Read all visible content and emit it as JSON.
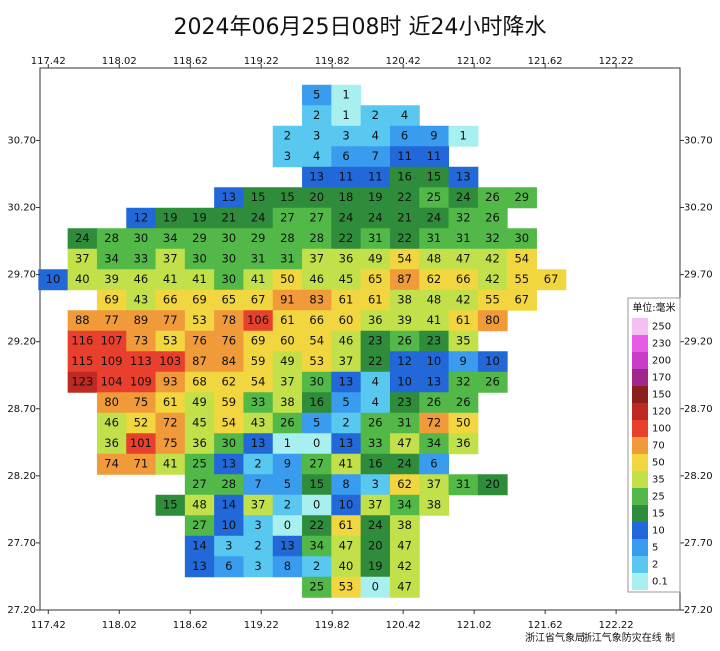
{
  "title": "2024年06月25日08时  近24小时降水",
  "map": {
    "lonlim": [
      117.35,
      122.76
    ],
    "latlim": [
      27.2,
      31.24
    ],
    "lon_ticks": [
      117.42,
      118.02,
      118.62,
      119.22,
      119.82,
      120.42,
      121.02,
      121.62,
      122.22
    ],
    "lat_ticks": [
      {
        "value": 30.7,
        "label": "30.70"
      },
      {
        "value": 30.2,
        "label": "30.20"
      },
      {
        "value": 29.7,
        "label": "29.70"
      },
      {
        "value": 29.2,
        "label": "29.20"
      },
      {
        "value": 28.7,
        "label": "28.70"
      },
      {
        "value": 28.2,
        "label": "28.20"
      },
      {
        "value": 27.7,
        "label": "27.70"
      },
      {
        "value": 27.2,
        "label": "27.20"
      }
    ],
    "stations": [
      [
        null,
        null,
        null,
        null,
        null,
        null,
        null,
        null,
        null,
        5,
        1,
        null,
        null,
        null,
        null,
        null,
        null,
        null,
        null
      ],
      [
        null,
        null,
        null,
        null,
        null,
        null,
        null,
        null,
        null,
        2,
        1,
        2,
        4,
        null,
        null,
        null,
        null,
        null,
        null
      ],
      [
        null,
        null,
        null,
        null,
        null,
        null,
        null,
        null,
        2,
        3,
        3,
        4,
        6,
        9,
        1,
        null,
        null,
        null,
        null
      ],
      [
        null,
        null,
        null,
        null,
        null,
        null,
        null,
        null,
        3,
        4,
        6,
        7,
        11,
        11,
        null,
        null,
        null,
        null,
        null
      ],
      [
        null,
        null,
        null,
        null,
        null,
        null,
        null,
        null,
        null,
        13,
        11,
        11,
        16,
        15,
        13,
        null,
        null,
        null,
        null
      ],
      [
        null,
        null,
        null,
        null,
        null,
        null,
        13,
        15,
        15,
        20,
        18,
        19,
        22,
        25,
        24,
        26,
        29,
        null,
        null
      ],
      [
        null,
        null,
        null,
        12,
        19,
        19,
        21,
        24,
        27,
        27,
        24,
        24,
        21,
        24,
        32,
        26,
        null,
        null,
        null
      ],
      [
        null,
        24,
        28,
        30,
        34,
        29,
        30,
        29,
        28,
        28,
        22,
        31,
        22,
        31,
        31,
        32,
        30,
        null,
        null
      ],
      [
        null,
        37,
        34,
        33,
        37,
        30,
        30,
        31,
        31,
        37,
        36,
        49,
        54,
        48,
        47,
        42,
        54,
        null,
        null
      ],
      [
        10,
        40,
        39,
        46,
        41,
        41,
        30,
        41,
        50,
        46,
        45,
        65,
        87,
        62,
        66,
        42,
        55,
        67,
        null
      ],
      [
        null,
        null,
        69,
        43,
        66,
        69,
        65,
        67,
        91,
        83,
        61,
        61,
        38,
        48,
        42,
        55,
        67,
        null,
        null
      ],
      [
        null,
        88,
        77,
        89,
        77,
        53,
        78,
        106,
        61,
        66,
        60,
        36,
        39,
        41,
        61,
        80,
        null,
        null,
        null
      ],
      [
        null,
        116,
        107,
        73,
        53,
        76,
        76,
        69,
        60,
        54,
        46,
        23,
        26,
        23,
        35,
        null,
        null,
        null,
        null
      ],
      [
        null,
        115,
        109,
        113,
        103,
        87,
        84,
        59,
        49,
        53,
        37,
        22,
        12,
        10,
        9,
        10,
        null,
        null,
        null
      ],
      [
        null,
        123,
        104,
        109,
        93,
        68,
        62,
        54,
        37,
        30,
        13,
        4,
        10,
        13,
        32,
        26,
        null,
        null,
        null
      ],
      [
        null,
        null,
        80,
        75,
        61,
        49,
        59,
        33,
        38,
        16,
        5,
        4,
        23,
        26,
        26,
        null,
        null,
        null,
        null
      ],
      [
        null,
        null,
        46,
        52,
        72,
        45,
        54,
        43,
        26,
        5,
        2,
        26,
        31,
        72,
        50,
        null,
        null,
        null,
        null
      ],
      [
        null,
        null,
        36,
        101,
        75,
        36,
        30,
        13,
        1,
        0,
        13,
        33,
        47,
        34,
        36,
        null,
        null,
        null,
        null
      ],
      [
        null,
        null,
        74,
        71,
        41,
        25,
        13,
        2,
        9,
        27,
        41,
        16,
        24,
        6,
        null,
        null,
        null,
        null,
        null
      ],
      [
        null,
        null,
        null,
        null,
        null,
        27,
        28,
        7,
        5,
        15,
        8,
        3,
        62,
        37,
        31,
        20,
        null,
        null,
        null
      ],
      [
        null,
        null,
        null,
        null,
        15,
        48,
        14,
        37,
        2,
        0,
        10,
        37,
        34,
        38,
        null,
        null,
        null,
        null,
        null
      ],
      [
        null,
        null,
        null,
        null,
        null,
        27,
        10,
        3,
        0,
        22,
        61,
        24,
        38,
        null,
        null,
        null,
        null,
        null,
        null
      ],
      [
        null,
        null,
        null,
        null,
        null,
        14,
        3,
        2,
        13,
        34,
        47,
        20,
        47,
        null,
        null,
        null,
        null,
        null,
        null
      ],
      [
        null,
        null,
        null,
        null,
        null,
        13,
        6,
        3,
        8,
        2,
        40,
        19,
        42,
        null,
        null,
        null,
        null,
        null,
        null
      ],
      [
        null,
        null,
        null,
        null,
        null,
        null,
        null,
        null,
        null,
        25,
        53,
        0,
        47,
        null,
        null,
        null,
        null,
        null,
        null
      ]
    ]
  },
  "legend": {
    "title": "单位:毫米",
    "items": [
      {
        "value": 250,
        "color": "#f4c0f4"
      },
      {
        "value": 230,
        "color": "#e85ae8"
      },
      {
        "value": 200,
        "color": "#c83cc8"
      },
      {
        "value": 170,
        "color": "#a0288c"
      },
      {
        "value": 150,
        "color": "#8c1e1e"
      },
      {
        "value": 120,
        "color": "#be2a22"
      },
      {
        "value": 100,
        "color": "#e8402c"
      },
      {
        "value": 70,
        "color": "#f09a3a"
      },
      {
        "value": 50,
        "color": "#f2d640"
      },
      {
        "value": 35,
        "color": "#c2e04a"
      },
      {
        "value": 25,
        "color": "#52b848"
      },
      {
        "value": 15,
        "color": "#2e8c3a"
      },
      {
        "value": 10,
        "color": "#2268d8"
      },
      {
        "value": 5,
        "color": "#3a9cee"
      },
      {
        "value": 2,
        "color": "#58c8f0"
      },
      {
        "value": 0.1,
        "color": "#a8f0f0"
      }
    ]
  },
  "footer": [
    "浙江省气象局",
    "浙江气象防灾在线 制"
  ]
}
